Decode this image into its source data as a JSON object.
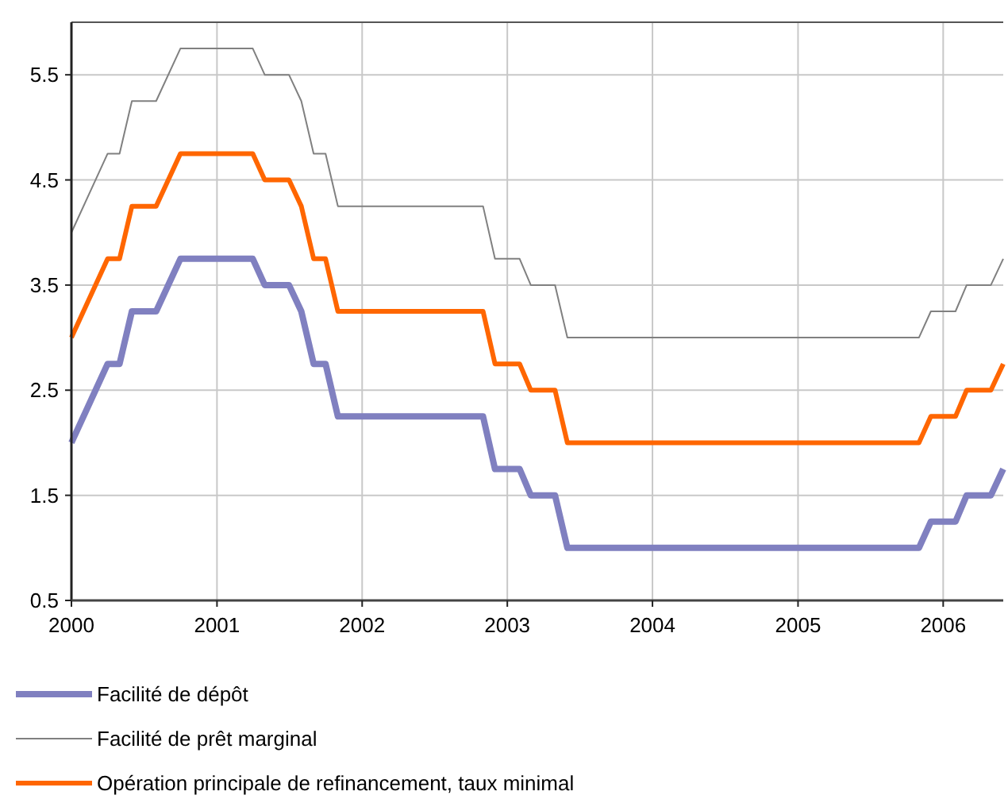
{
  "chart_data": {
    "type": "line",
    "x": [
      "2000-01",
      "2000-04",
      "2000-05",
      "2000-06",
      "2000-08",
      "2000-10",
      "2001-04",
      "2001-05",
      "2001-07",
      "2001-08",
      "2001-09",
      "2001-10",
      "2001-11",
      "2002-11",
      "2002-12",
      "2003-02",
      "2003-03",
      "2003-05",
      "2003-06",
      "2005-11",
      "2005-12",
      "2006-02",
      "2006-03",
      "2006-05",
      "2006-06"
    ],
    "xlim": [
      "2000-01",
      "2006-06"
    ],
    "xticks": [
      {
        "value": "2000-01",
        "label": "2000"
      },
      {
        "value": "2001-01",
        "label": "2001"
      },
      {
        "value": "2002-01",
        "label": "2002"
      },
      {
        "value": "2003-01",
        "label": "2003"
      },
      {
        "value": "2004-01",
        "label": "2004"
      },
      {
        "value": "2005-01",
        "label": "2005"
      },
      {
        "value": "2006-01",
        "label": "2006"
      }
    ],
    "ylim": [
      0.5,
      6
    ],
    "yticks": [
      0.5,
      1.5,
      2.5,
      3.5,
      4.5,
      5.5
    ],
    "grid": true,
    "legend": "bottom",
    "series": [
      {
        "name": "Facilité de dépôt",
        "color": "#8080c0",
        "values": [
          2.0,
          2.75,
          2.75,
          3.25,
          3.25,
          3.75,
          3.75,
          3.5,
          3.5,
          3.25,
          2.75,
          2.75,
          2.25,
          2.25,
          1.75,
          1.75,
          1.5,
          1.5,
          1.0,
          1.0,
          1.25,
          1.25,
          1.5,
          1.5,
          1.75
        ]
      },
      {
        "name": "Facilité de prêt marginal",
        "color": "#808080",
        "values": [
          4.0,
          4.75,
          4.75,
          5.25,
          5.25,
          5.75,
          5.75,
          5.5,
          5.5,
          5.25,
          4.75,
          4.75,
          4.25,
          4.25,
          3.75,
          3.75,
          3.5,
          3.5,
          3.0,
          3.0,
          3.25,
          3.25,
          3.5,
          3.5,
          3.75
        ]
      },
      {
        "name": "Opération principale de refinancement, taux minimal",
        "color": "#ff6600",
        "values": [
          3.0,
          3.75,
          3.75,
          4.25,
          4.25,
          4.75,
          4.75,
          4.5,
          4.5,
          4.25,
          3.75,
          3.75,
          3.25,
          3.25,
          2.75,
          2.75,
          2.5,
          2.5,
          2.0,
          2.0,
          2.25,
          2.25,
          2.5,
          2.5,
          2.75
        ]
      }
    ]
  }
}
